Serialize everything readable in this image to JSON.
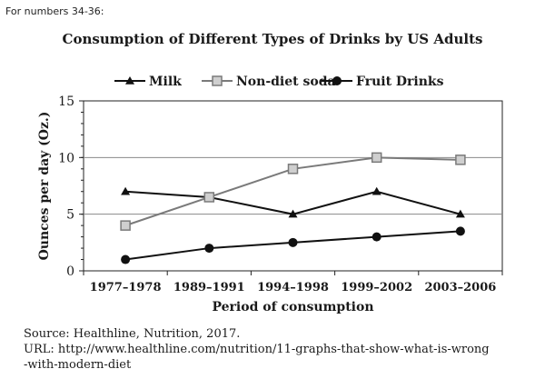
{
  "header_note": "For numbers 34-36:",
  "source": {
    "line1": "Source: Healthline, Nutrition, 2017.",
    "line2": "URL: http://www.healthline.com/nutrition/11-graphs-that-show-what-is-wrong",
    "line3": "-with-modern-diet"
  },
  "chart_data": {
    "type": "line",
    "title": "Consumption of Different Types of Drinks by US Adults",
    "xlabel": "Period of consumption",
    "ylabel": "Ounces per day (Oz.)",
    "ylim": [
      0,
      15
    ],
    "yticks": [
      "0",
      "5",
      "10",
      "15"
    ],
    "grid": true,
    "legend_position": "top",
    "categories": [
      "1977–1978",
      "1989–1991",
      "1994–1998",
      "1999–2002",
      "2003–2006"
    ],
    "series": [
      {
        "name": "Milk",
        "marker": "triangle",
        "color": "#111111",
        "values": [
          7,
          6.5,
          5,
          7,
          5
        ]
      },
      {
        "name": "Non-diet soda",
        "marker": "square",
        "color": "#7a7a7a",
        "values": [
          4,
          6.5,
          9,
          10,
          9.8
        ]
      },
      {
        "name": "Fruit Drinks",
        "marker": "circle",
        "color": "#111111",
        "values": [
          1,
          2,
          2.5,
          3,
          3.5
        ]
      }
    ]
  }
}
